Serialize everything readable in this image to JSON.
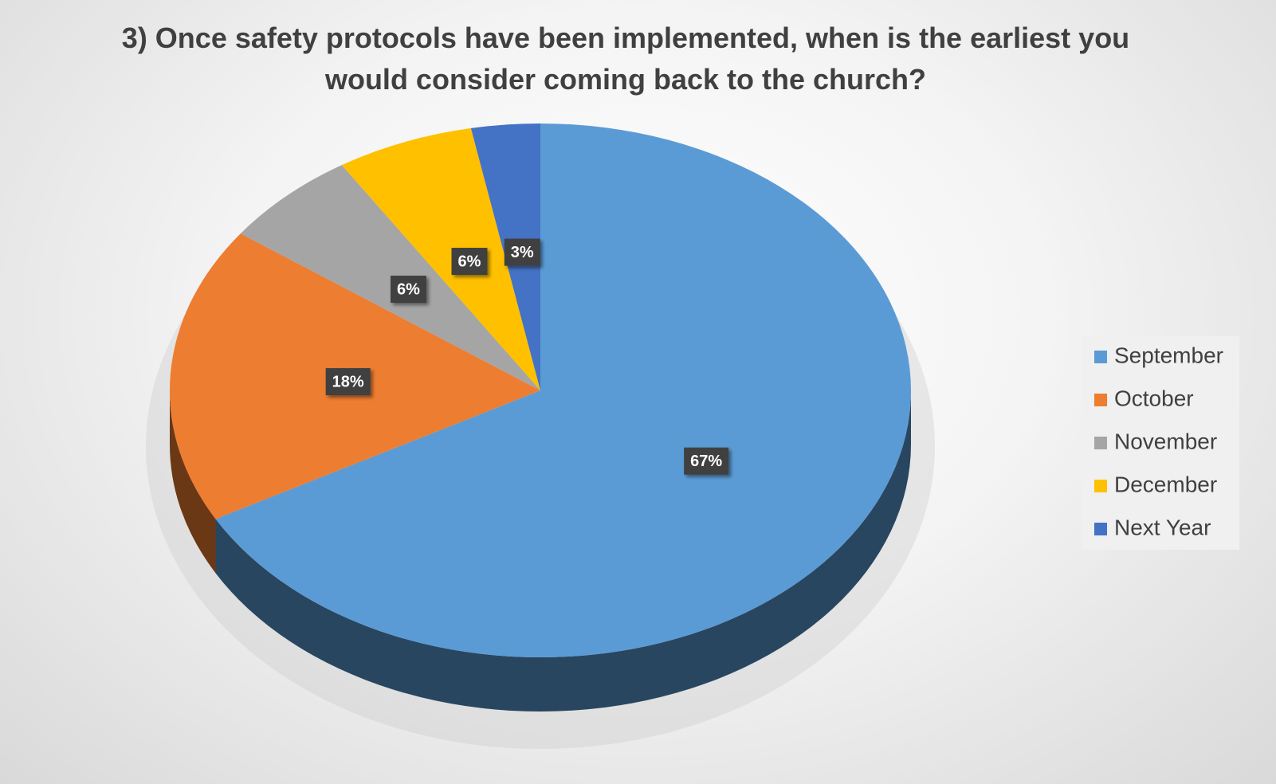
{
  "chart_data": {
    "type": "pie",
    "title": "3) Once safety protocols have been implemented, when is the earliest you would consider coming back to the church?",
    "categories": [
      "September",
      "October",
      "November",
      "December",
      "Next Year"
    ],
    "values": [
      67,
      18,
      6,
      6,
      3
    ],
    "value_labels": [
      "67%",
      "18%",
      "6%",
      "6%",
      "3%"
    ],
    "colors": [
      "#5b9bd5",
      "#ed7d31",
      "#a5a5a5",
      "#ffc000",
      "#4472c4"
    ],
    "legend": "right"
  }
}
